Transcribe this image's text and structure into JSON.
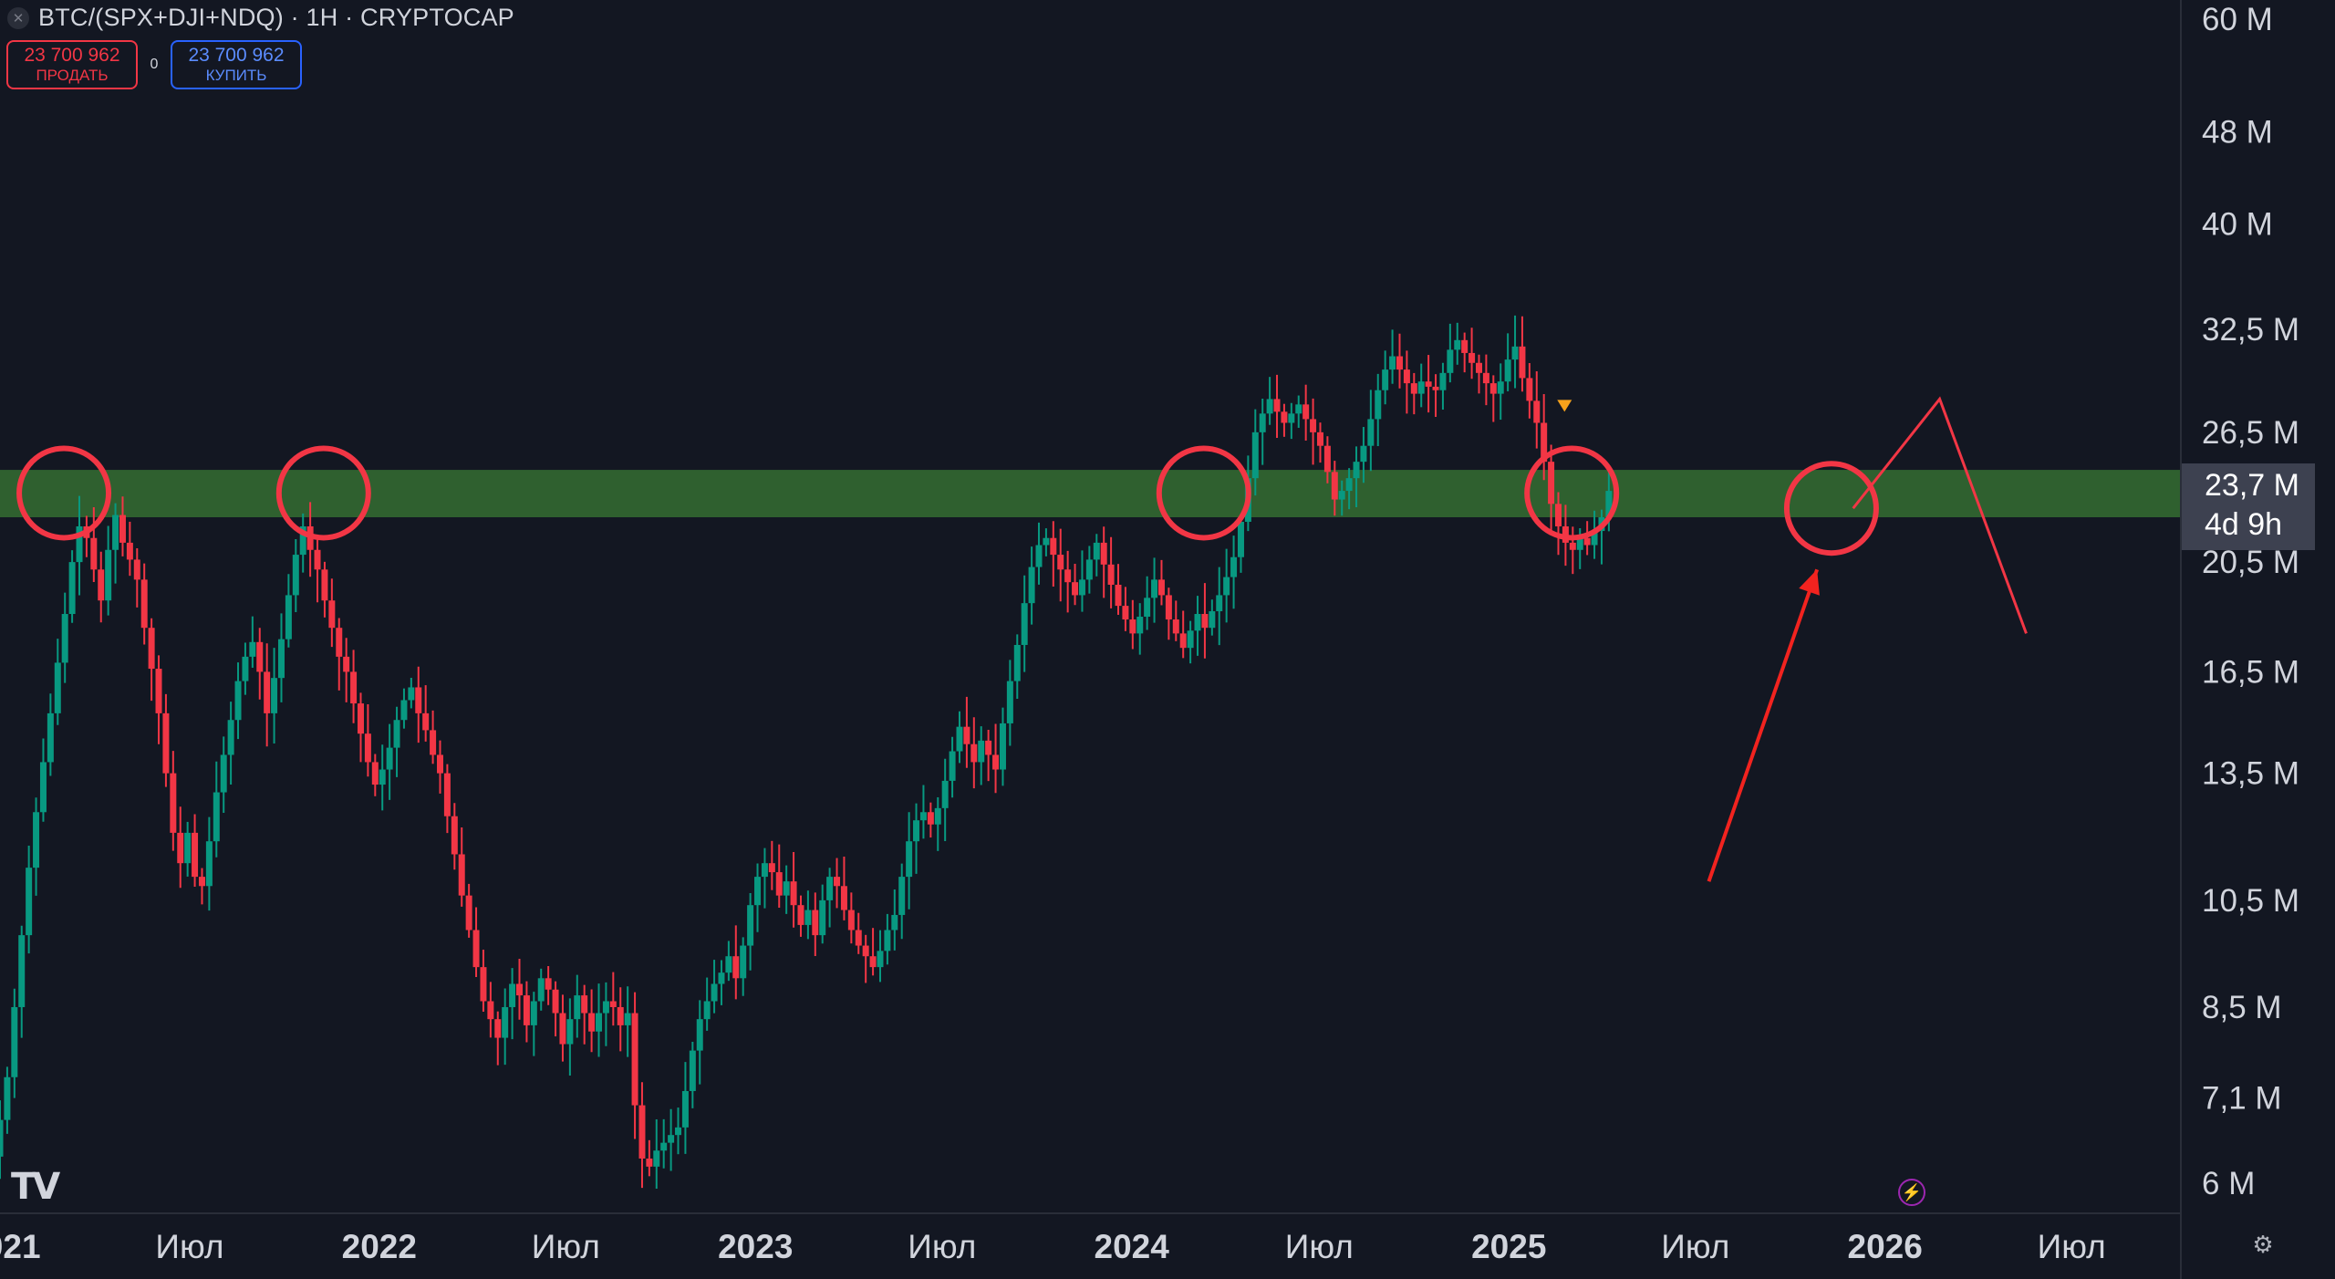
{
  "header": {
    "close_icon": "close-icon",
    "symbol": "BTC/(SPX+DJI+NDQ) · 1H · CRYPTOCAP"
  },
  "trade": {
    "sell_price": "23 700 962",
    "sell_label": "ПРОДАТЬ",
    "spread": "0",
    "buy_price": "23 700 962",
    "buy_label": "КУПИТЬ"
  },
  "price_badge": {
    "price": "23,7 M",
    "countdown": "4d 9h"
  },
  "logo": "TV",
  "colors": {
    "background": "#131722",
    "up": "#089981",
    "down": "#f23645",
    "zone": "#3a7d34",
    "annotation": "#f23645",
    "axis_text": "#d1d4dc"
  },
  "chart_data": {
    "type": "candlestick",
    "title": "BTC/(SPX+DJI+NDQ) · 1H · CRYPTOCAP",
    "y_scale": "log",
    "ylim": [
      5600000,
      62000000
    ],
    "y_ticks": [
      {
        "value": 60000000,
        "label": "60 M"
      },
      {
        "value": 48000000,
        "label": "48 M"
      },
      {
        "value": 40000000,
        "label": "40 M"
      },
      {
        "value": 32500000,
        "label": "32,5 M"
      },
      {
        "value": 26500000,
        "label": "26,5 M"
      },
      {
        "value": 20500000,
        "label": "20,5 M"
      },
      {
        "value": 16500000,
        "label": "16,5 M"
      },
      {
        "value": 13500000,
        "label": "13,5 M"
      },
      {
        "value": 10500000,
        "label": "10,5 M"
      },
      {
        "value": 8500000,
        "label": "8,5 M"
      },
      {
        "value": 7100000,
        "label": "7,1 M"
      },
      {
        "value": 6000000,
        "label": "6 M"
      }
    ],
    "x_ticks": [
      {
        "label": "2021",
        "x": "2021-01-01",
        "bold": true
      },
      {
        "label": "Июл",
        "x": "2021-07-01",
        "bold": false
      },
      {
        "label": "2022",
        "x": "2022-01-01",
        "bold": true
      },
      {
        "label": "Июл",
        "x": "2022-07-01",
        "bold": false
      },
      {
        "label": "2023",
        "x": "2023-01-01",
        "bold": true
      },
      {
        "label": "Июл",
        "x": "2023-07-01",
        "bold": false
      },
      {
        "label": "2024",
        "x": "2024-01-01",
        "bold": true
      },
      {
        "label": "Июл",
        "x": "2024-07-01",
        "bold": false
      },
      {
        "label": "2025",
        "x": "2025-01-01",
        "bold": true
      },
      {
        "label": "Июл",
        "x": "2025-07-01",
        "bold": false
      },
      {
        "label": "2026",
        "x": "2026-01-01",
        "bold": true
      },
      {
        "label": "Июл",
        "x": "2026-07-01",
        "bold": false
      }
    ],
    "x_range": [
      "2020-12-29",
      "2026-10-15"
    ],
    "candle_interval_days": 7,
    "closes": [
      6.8,
      7.4,
      8.5,
      9.8,
      11.2,
      12.5,
      13.8,
      15.2,
      16.8,
      18.5,
      20.5,
      22.0,
      21.5,
      20.2,
      19.0,
      21.0,
      22.5,
      21.3,
      20.6,
      19.8,
      18.0,
      16.6,
      15.2,
      13.5,
      12.0,
      11.3,
      12.0,
      11.0,
      10.8,
      11.8,
      13.0,
      14.0,
      15.0,
      16.2,
      17.0,
      17.5,
      16.5,
      15.2,
      16.3,
      17.6,
      19.2,
      20.8,
      22.0,
      21.0,
      20.2,
      19.0,
      18.0,
      17.0,
      16.5,
      15.5,
      14.6,
      13.8,
      13.2,
      13.6,
      14.2,
      15.0,
      15.6,
      16.0,
      15.2,
      14.7,
      14.0,
      13.5,
      12.4,
      11.5,
      10.6,
      9.9,
      9.2,
      8.6,
      8.3,
      8.0,
      8.5,
      8.9,
      8.7,
      8.2,
      8.6,
      9.0,
      8.8,
      8.4,
      7.9,
      8.3,
      8.7,
      8.4,
      8.1,
      8.4,
      8.6,
      8.5,
      8.2,
      8.4,
      7.0,
      6.3,
      6.2,
      6.4,
      6.5,
      6.6,
      6.7,
      7.2,
      7.8,
      8.3,
      8.6,
      8.9,
      9.1,
      9.4,
      9.0,
      9.6,
      10.4,
      11.0,
      11.3,
      11.1,
      10.6,
      10.9,
      10.4,
      10.0,
      10.3,
      9.8,
      10.5,
      11.0,
      10.8,
      10.3,
      9.9,
      9.6,
      9.4,
      9.2,
      9.5,
      9.9,
      10.2,
      11.0,
      11.8,
      12.3,
      12.5,
      12.2,
      12.6,
      13.3,
      14.1,
      14.8,
      14.3,
      13.8,
      14.4,
      14.0,
      13.6,
      14.9,
      16.2,
      17.4,
      18.9,
      20.3,
      21.2,
      21.5,
      20.8,
      20.2,
      19.7,
      19.2,
      19.8,
      20.6,
      21.3,
      20.4,
      19.6,
      18.8,
      18.3,
      17.8,
      18.4,
      19.1,
      19.8,
      19.2,
      18.3,
      17.8,
      17.3,
      17.9,
      18.5,
      18.0,
      18.6,
      19.2,
      19.9,
      20.7,
      22.2,
      24.2,
      26.5,
      27.5,
      28.3,
      27.6,
      27.0,
      27.5,
      28.0,
      27.2,
      26.5,
      25.8,
      24.5,
      23.2,
      23.6,
      24.2,
      25.0,
      25.8,
      27.2,
      28.8,
      30.0,
      30.8,
      30.0,
      29.2,
      28.6,
      29.3,
      29.0,
      28.8,
      29.8,
      31.2,
      31.8,
      31.0,
      30.4,
      29.8,
      29.2,
      28.6,
      29.3,
      30.6,
      31.4,
      29.5,
      28.2,
      27.0,
      25.0,
      23.0,
      22.0,
      21.3,
      21.0,
      21.5,
      21.2,
      21.8,
      22.4,
      23.6
    ],
    "zone": {
      "from": 22400000,
      "to": 24600000
    },
    "circles": [
      {
        "x": "2021-03-01",
        "y": 23500000
      },
      {
        "x": "2021-11-08",
        "y": 23500000
      },
      {
        "x": "2024-03-11",
        "y": 23500000
      },
      {
        "x": "2025-03-03",
        "y": 23500000
      },
      {
        "x": "2025-11-10",
        "y": 22800000
      }
    ],
    "projection": [
      {
        "x": "2025-12-01",
        "y": 22800000
      },
      {
        "x": "2026-02-23",
        "y": 28300000
      },
      {
        "x": "2026-05-18",
        "y": 17800000
      }
    ],
    "arrow": {
      "from": {
        "x": "2025-07-14",
        "y": 10900000
      },
      "to": {
        "x": "2025-10-27",
        "y": 20200000
      }
    },
    "last_price": 23700000,
    "marker": {
      "x": "2025-02-24",
      "y": 27900000
    }
  }
}
